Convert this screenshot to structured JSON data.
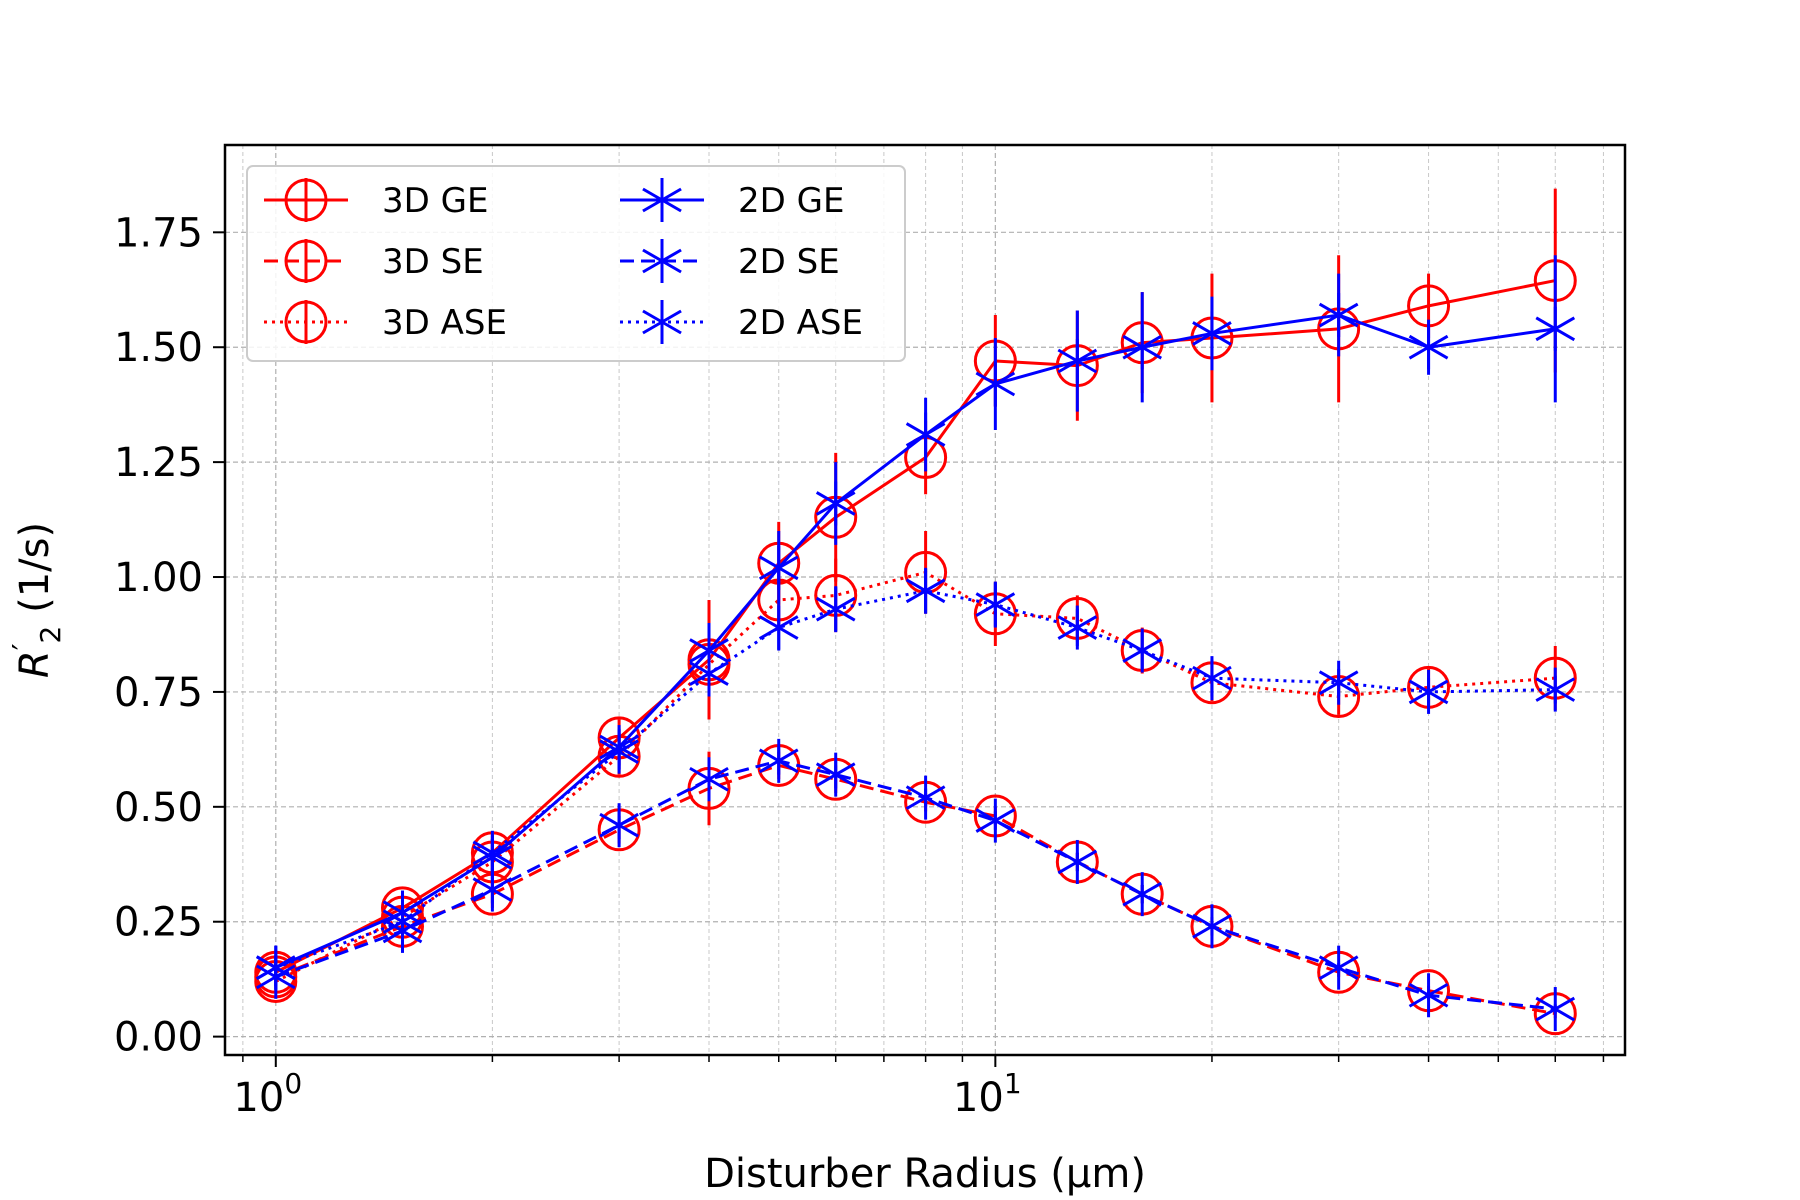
{
  "chart_data": {
    "type": "line",
    "title": "",
    "xlabel": "Disturber Radius (μm)",
    "ylabel": "R'2 (1/s)",
    "ylabel_parts": {
      "main": "R",
      "prime": "′",
      "sub": "2",
      "units": " (1/s)"
    },
    "xscale": "log",
    "xlim": [
      0.85,
      75
    ],
    "ylim": [
      -0.04,
      1.94
    ],
    "grid": true,
    "legend_location": "upper-left",
    "legend_columns": 2,
    "xticks": [
      {
        "value": 1,
        "base": "10",
        "exp": "0"
      },
      {
        "value": 10,
        "base": "10",
        "exp": "1"
      }
    ],
    "yticks": [
      {
        "value": 0.0,
        "label": "0.00"
      },
      {
        "value": 0.25,
        "label": "0.25"
      },
      {
        "value": 0.5,
        "label": "0.50"
      },
      {
        "value": 0.75,
        "label": "0.75"
      },
      {
        "value": 1.0,
        "label": "1.00"
      },
      {
        "value": 1.25,
        "label": "1.25"
      },
      {
        "value": 1.5,
        "label": "1.50"
      },
      {
        "value": 1.75,
        "label": "1.75"
      }
    ],
    "x": [
      1,
      1.5,
      2,
      3,
      4,
      5,
      6,
      8,
      10,
      13,
      16,
      20,
      30,
      40,
      60
    ],
    "series": [
      {
        "name": "3D GE",
        "color": "#ff0000",
        "dash": "solid",
        "marker": "circle",
        "values": [
          0.14,
          0.28,
          0.4,
          0.65,
          0.82,
          1.03,
          1.13,
          1.26,
          1.47,
          1.46,
          1.51,
          1.52,
          1.54,
          1.59,
          1.645
        ],
        "errors": [
          0.02,
          0.03,
          0.04,
          0.04,
          0.13,
          0.09,
          0.14,
          0.08,
          0.1,
          0.12,
          0.11,
          0.14,
          0.16,
          0.07,
          0.2
        ]
      },
      {
        "name": "3D SE",
        "color": "#ff0000",
        "dash": "dashed",
        "marker": "circle",
        "values": [
          0.13,
          0.24,
          0.31,
          0.45,
          0.54,
          0.59,
          0.56,
          0.51,
          0.48,
          0.38,
          0.31,
          0.24,
          0.14,
          0.1,
          0.05
        ],
        "errors": [
          0.02,
          0.03,
          0.03,
          0.03,
          0.08,
          0.03,
          0.03,
          0.02,
          0.02,
          0.02,
          0.02,
          0.02,
          0.01,
          0.01,
          0.01
        ]
      },
      {
        "name": "3D ASE",
        "color": "#ff0000",
        "dash": "dotted",
        "marker": "circle",
        "values": [
          0.12,
          0.26,
          0.38,
          0.61,
          0.81,
          0.95,
          0.96,
          1.01,
          0.92,
          0.91,
          0.84,
          0.77,
          0.74,
          0.76,
          0.78
        ],
        "errors": [
          0.02,
          0.03,
          0.03,
          0.04,
          0.05,
          0.06,
          0.08,
          0.09,
          0.07,
          0.05,
          0.05,
          0.04,
          0.04,
          0.04,
          0.07
        ]
      },
      {
        "name": "2D GE",
        "color": "#0000ff",
        "dash": "solid",
        "marker": "star",
        "values": [
          0.15,
          0.27,
          0.39,
          0.63,
          0.84,
          1.02,
          1.16,
          1.31,
          1.42,
          1.47,
          1.5,
          1.53,
          1.57,
          1.5,
          1.54
        ],
        "errors": [
          0.02,
          0.03,
          0.04,
          0.04,
          0.06,
          0.08,
          0.09,
          0.08,
          0.1,
          0.11,
          0.12,
          0.08,
          0.09,
          0.06,
          0.16
        ]
      },
      {
        "name": "2D SE",
        "color": "#0000ff",
        "dash": "dashed",
        "marker": "star",
        "values": [
          0.13,
          0.23,
          0.32,
          0.46,
          0.56,
          0.6,
          0.57,
          0.52,
          0.47,
          0.38,
          0.31,
          0.24,
          0.15,
          0.09,
          0.06
        ],
        "errors": [
          0.02,
          0.03,
          0.03,
          0.03,
          0.04,
          0.03,
          0.03,
          0.02,
          0.02,
          0.02,
          0.02,
          0.02,
          0.01,
          0.01,
          0.01
        ]
      },
      {
        "name": "2D ASE",
        "color": "#0000ff",
        "dash": "dotted",
        "marker": "star",
        "values": [
          0.15,
          0.25,
          0.4,
          0.62,
          0.79,
          0.89,
          0.93,
          0.97,
          0.94,
          0.89,
          0.84,
          0.78,
          0.77,
          0.75,
          0.755
        ],
        "errors": [
          0.02,
          0.03,
          0.03,
          0.04,
          0.05,
          0.05,
          0.05,
          0.05,
          0.05,
          0.04,
          0.04,
          0.04,
          0.03,
          0.03,
          0.03
        ]
      }
    ]
  }
}
